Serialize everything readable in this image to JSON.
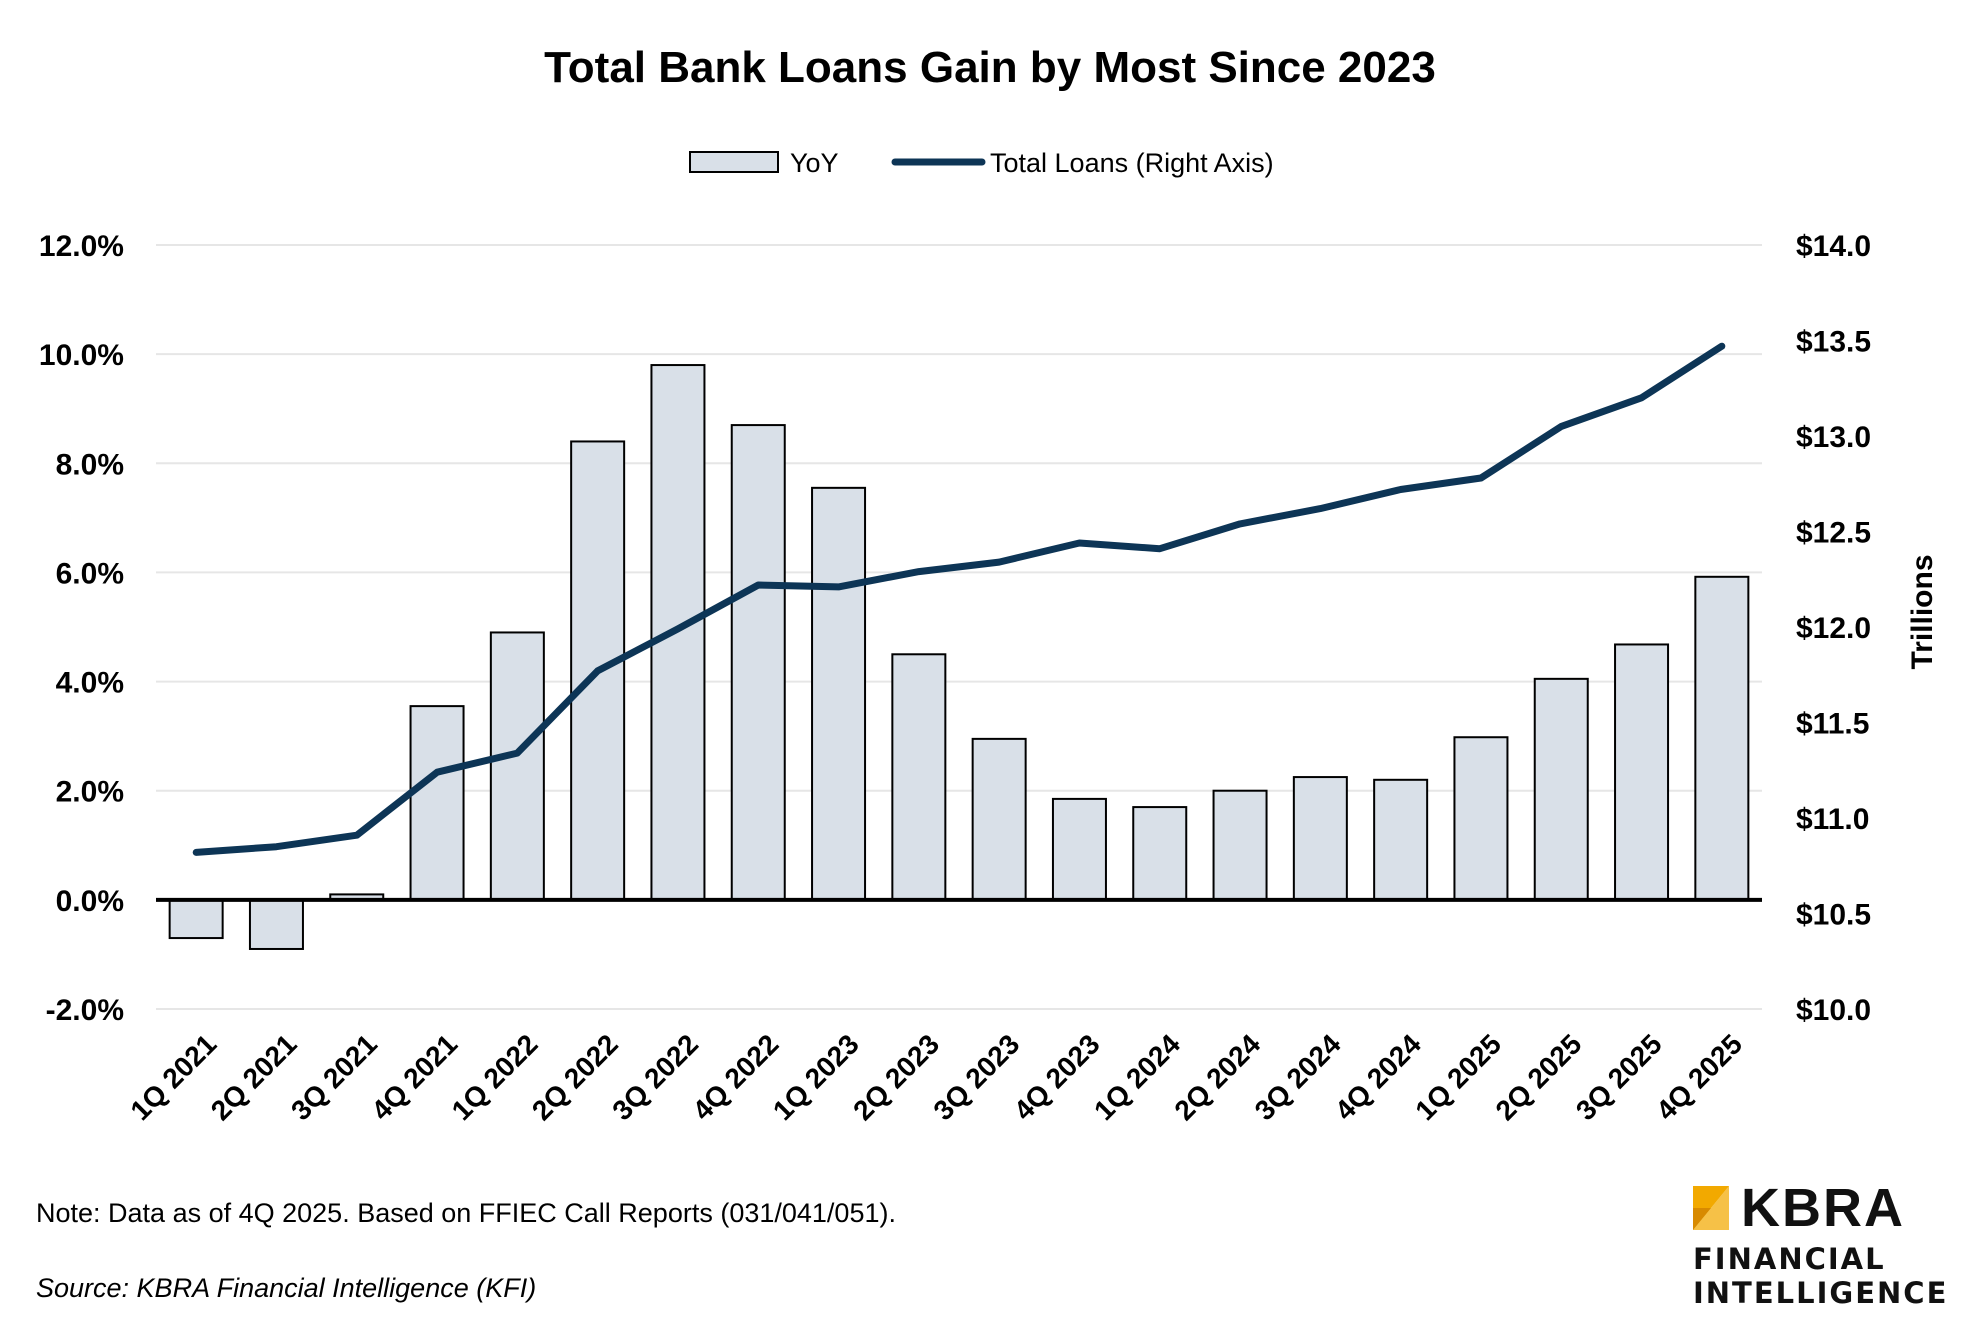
{
  "footer": {
    "note": "Note: Data as of 4Q 2025. Based on FFIEC Call Reports (031/041/051).",
    "source": "Source: KBRA Financial Intelligence (KFI)"
  },
  "logo": {
    "word": "KBRA",
    "line1": "FINANCIAL",
    "line2": "INTELLIGENCE",
    "accent_color": "#F2A900"
  },
  "chart_data": {
    "type": "bar",
    "title": "Total Bank Loans Gain by Most Since 2023",
    "legend_position": "top-center",
    "categories": [
      "1Q 2021",
      "2Q 2021",
      "3Q 2021",
      "4Q 2021",
      "1Q 2022",
      "2Q 2022",
      "3Q 2022",
      "4Q 2022",
      "1Q 2023",
      "2Q 2023",
      "3Q 2023",
      "4Q 2023",
      "1Q 2024",
      "2Q 2024",
      "3Q 2024",
      "4Q 2024",
      "1Q 2025",
      "2Q 2025",
      "3Q 2025",
      "4Q 2025"
    ],
    "series": [
      {
        "name": "YoY",
        "type": "bar",
        "axis": "left",
        "color": "#D9E0E8",
        "values": [
          -0.7,
          -0.9,
          0.1,
          3.55,
          4.9,
          8.4,
          9.8,
          8.7,
          7.55,
          4.5,
          2.95,
          1.85,
          1.7,
          2.0,
          2.25,
          2.2,
          2.98,
          4.05,
          4.68,
          5.92
        ]
      },
      {
        "name": "Total Loans (Right Axis)",
        "type": "line",
        "axis": "right",
        "color": "#0D3556",
        "values": [
          10.82,
          10.85,
          10.91,
          11.24,
          11.34,
          11.77,
          11.99,
          12.22,
          12.21,
          12.29,
          12.34,
          12.44,
          12.41,
          12.54,
          12.62,
          12.72,
          12.78,
          13.05,
          13.2,
          13.47
        ]
      }
    ],
    "y_left": {
      "min": -2,
      "max": 12,
      "step": 2,
      "tick_labels": [
        "-2.0%",
        "0.0%",
        "2.0%",
        "4.0%",
        "6.0%",
        "8.0%",
        "10.0%",
        "12.0%"
      ]
    },
    "y_right": {
      "min": 10,
      "max": 14,
      "step": 0.5,
      "label": "Trillions",
      "tick_labels": [
        "$10.0",
        "$10.5",
        "$11.0",
        "$11.5",
        "$12.0",
        "$12.5",
        "$13.0",
        "$13.5",
        "$14.0"
      ]
    },
    "grid": true
  }
}
